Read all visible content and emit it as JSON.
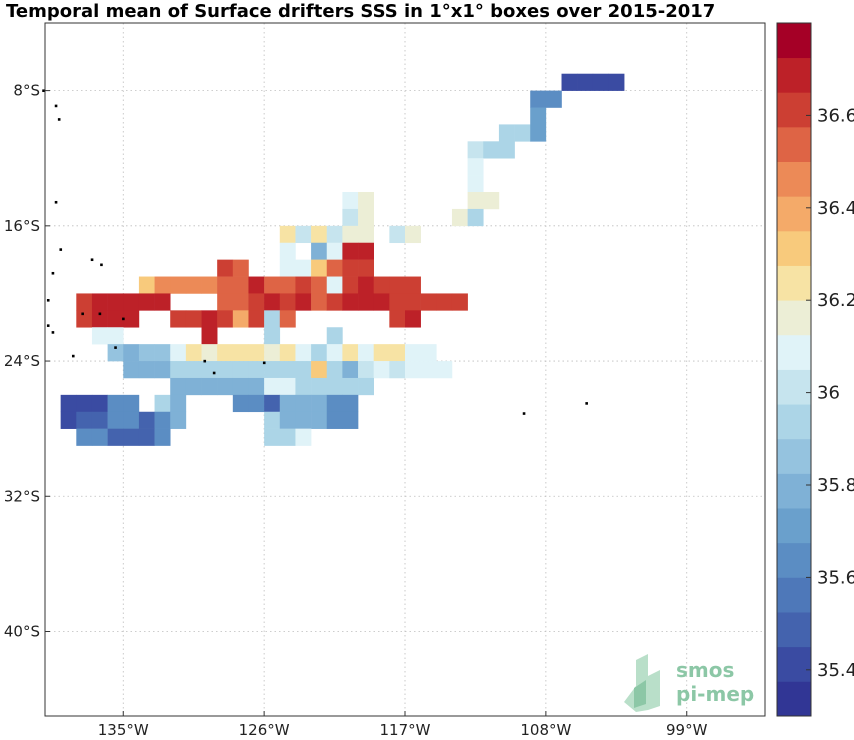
{
  "title": "Temporal mean of Surface drifters SSS in 1°x1° boxes over 2015-2017",
  "map": {
    "lon_range": [
      -140,
      -94
    ],
    "lat_range": [
      -45,
      -4
    ],
    "lon_ticks": [
      {
        "value": -135,
        "label": "135°W"
      },
      {
        "value": -126,
        "label": "126°W"
      },
      {
        "value": -117,
        "label": "117°W"
      },
      {
        "value": -108,
        "label": "108°W"
      },
      {
        "value": -99,
        "label": "99°W"
      }
    ],
    "lat_ticks": [
      {
        "value": -8,
        "label": "8°S"
      },
      {
        "value": -16,
        "label": "16°S"
      },
      {
        "value": -24,
        "label": "24°S"
      },
      {
        "value": -32,
        "label": "32°S"
      },
      {
        "value": -40,
        "label": "40°S"
      }
    ],
    "grid": true,
    "gridline_style": "dotted"
  },
  "colorbar": {
    "min": 35.3,
    "max": 36.8,
    "levels": 20,
    "ticks": [
      "35.4",
      "35.6",
      "35.8",
      "36",
      "36.2",
      "36.4",
      "36.6"
    ],
    "tick_values": [
      35.4,
      35.6,
      35.8,
      36.0,
      36.2,
      36.4,
      36.6
    ],
    "colors": [
      "#313695",
      "#3a4ba2",
      "#4463ae",
      "#4e78b9",
      "#5b8dc3",
      "#6aa0cc",
      "#7fb1d6",
      "#95c3df",
      "#acd5e7",
      "#c6e4ee",
      "#e0f3f8",
      "#eceed6",
      "#f7e3a4",
      "#f8ca7c",
      "#f4aa69",
      "#ec8a57",
      "#de6445",
      "#cc3f33",
      "#bd2128",
      "#a50026"
    ]
  },
  "logo": {
    "line1": "smos",
    "line2": "pi-mep"
  },
  "chart_data": {
    "type": "heatmap",
    "title": "Temporal mean of Surface drifters SSS in 1°x1° boxes over 2015-2017",
    "xlabel": "",
    "ylabel": "",
    "xlim": [
      -140,
      -94
    ],
    "ylim": [
      -45,
      -4
    ],
    "cell_size_deg": 1,
    "cells": [
      [
        -106.5,
        -7.5,
        35.4
      ],
      [
        -105.5,
        -7.5,
        35.4
      ],
      [
        -104.5,
        -7.5,
        35.4
      ],
      [
        -103.5,
        -7.5,
        35.4
      ],
      [
        -108.5,
        -8.5,
        35.6
      ],
      [
        -107.5,
        -8.5,
        35.6
      ],
      [
        -108.5,
        -9.5,
        35.7
      ],
      [
        -110.5,
        -10.5,
        35.9
      ],
      [
        -109.5,
        -10.5,
        35.9
      ],
      [
        -108.5,
        -10.5,
        35.7
      ],
      [
        -112.5,
        -11.5,
        36.0
      ],
      [
        -111.5,
        -11.5,
        35.9
      ],
      [
        -110.5,
        -11.5,
        35.9
      ],
      [
        -112.5,
        -12.5,
        36.1
      ],
      [
        -112.5,
        -13.5,
        36.1
      ],
      [
        -120.5,
        -14.5,
        36.1
      ],
      [
        -119.5,
        -14.5,
        36.15
      ],
      [
        -112.5,
        -14.5,
        36.15
      ],
      [
        -111.5,
        -14.5,
        36.15
      ],
      [
        -120.5,
        -15.5,
        36.0
      ],
      [
        -119.5,
        -15.5,
        36.15
      ],
      [
        -113.5,
        -15.5,
        36.15
      ],
      [
        -112.5,
        -15.5,
        35.9
      ],
      [
        -124.5,
        -16.5,
        36.2
      ],
      [
        -123.5,
        -16.5,
        36.0
      ],
      [
        -122.5,
        -16.5,
        36.2
      ],
      [
        -121.5,
        -16.5,
        36.0
      ],
      [
        -120.5,
        -16.5,
        36.15
      ],
      [
        -119.5,
        -16.5,
        36.15
      ],
      [
        -117.5,
        -16.5,
        36.0
      ],
      [
        -116.5,
        -16.5,
        36.15
      ],
      [
        -124.5,
        -17.5,
        36.05
      ],
      [
        -122.5,
        -17.5,
        35.8
      ],
      [
        -121.5,
        -17.5,
        36.05
      ],
      [
        -120.5,
        -17.5,
        36.7
      ],
      [
        -119.5,
        -17.5,
        36.7
      ],
      [
        -128.5,
        -18.5,
        36.6
      ],
      [
        -127.5,
        -18.5,
        36.5
      ],
      [
        -124.5,
        -18.5,
        36.05
      ],
      [
        -123.5,
        -18.5,
        36.1
      ],
      [
        -122.5,
        -18.5,
        36.3
      ],
      [
        -121.5,
        -18.5,
        36.5
      ],
      [
        -120.5,
        -18.5,
        36.6
      ],
      [
        -119.5,
        -18.5,
        36.6
      ],
      [
        -133.5,
        -19.5,
        36.3
      ],
      [
        -132.5,
        -19.5,
        36.45
      ],
      [
        -131.5,
        -19.5,
        36.45
      ],
      [
        -130.5,
        -19.5,
        36.45
      ],
      [
        -129.5,
        -19.5,
        36.45
      ],
      [
        -128.5,
        -19.5,
        36.55
      ],
      [
        -127.5,
        -19.5,
        36.55
      ],
      [
        -126.5,
        -19.5,
        36.65
      ],
      [
        -125.5,
        -19.5,
        36.55
      ],
      [
        -124.5,
        -19.5,
        36.55
      ],
      [
        -123.5,
        -19.5,
        36.6
      ],
      [
        -122.5,
        -19.5,
        36.55
      ],
      [
        -121.5,
        -19.5,
        36.1
      ],
      [
        -120.5,
        -19.5,
        36.6
      ],
      [
        -119.5,
        -19.5,
        36.7
      ],
      [
        -118.5,
        -19.5,
        36.6
      ],
      [
        -117.5,
        -19.5,
        36.6
      ],
      [
        -116.5,
        -19.5,
        36.6
      ],
      [
        -137.5,
        -20.5,
        36.6
      ],
      [
        -136.5,
        -20.5,
        36.7
      ],
      [
        -135.5,
        -20.5,
        36.7
      ],
      [
        -134.5,
        -20.5,
        36.7
      ],
      [
        -133.5,
        -20.5,
        36.7
      ],
      [
        -132.5,
        -20.5,
        36.7
      ],
      [
        -128.5,
        -20.5,
        36.55
      ],
      [
        -127.5,
        -20.5,
        36.55
      ],
      [
        -126.5,
        -20.5,
        36.6
      ],
      [
        -125.5,
        -20.5,
        36.65
      ],
      [
        -124.5,
        -20.5,
        36.6
      ],
      [
        -123.5,
        -20.5,
        36.65
      ],
      [
        -122.5,
        -20.5,
        36.5
      ],
      [
        -121.5,
        -20.5,
        36.6
      ],
      [
        -120.5,
        -20.5,
        36.7
      ],
      [
        -119.5,
        -20.5,
        36.7
      ],
      [
        -118.5,
        -20.5,
        36.7
      ],
      [
        -117.5,
        -20.5,
        36.6
      ],
      [
        -116.5,
        -20.5,
        36.6
      ],
      [
        -115.5,
        -20.5,
        36.6
      ],
      [
        -114.5,
        -20.5,
        36.6
      ],
      [
        -113.5,
        -20.5,
        36.6
      ],
      [
        -137.5,
        -21.5,
        36.6
      ],
      [
        -136.5,
        -21.5,
        36.7
      ],
      [
        -135.5,
        -21.5,
        36.65
      ],
      [
        -134.5,
        -21.5,
        36.65
      ],
      [
        -131.5,
        -21.5,
        36.6
      ],
      [
        -130.5,
        -21.5,
        36.6
      ],
      [
        -129.5,
        -21.5,
        36.7
      ],
      [
        -128.5,
        -21.5,
        36.6
      ],
      [
        -127.5,
        -21.5,
        36.4
      ],
      [
        -126.5,
        -21.5,
        36.6
      ],
      [
        -125.5,
        -21.5,
        35.9
      ],
      [
        -124.5,
        -21.5,
        36.5
      ],
      [
        -117.5,
        -21.5,
        36.6
      ],
      [
        -116.5,
        -21.5,
        36.7
      ],
      [
        -136.5,
        -22.5,
        36.1
      ],
      [
        -135.5,
        -22.5,
        36.05
      ],
      [
        -129.5,
        -22.5,
        36.7
      ],
      [
        -125.5,
        -22.5,
        35.95
      ],
      [
        -121.5,
        -22.5,
        35.9
      ],
      [
        -135.5,
        -23.5,
        35.85
      ],
      [
        -134.5,
        -23.5,
        35.8
      ],
      [
        -133.5,
        -23.5,
        35.85
      ],
      [
        -132.5,
        -23.5,
        35.85
      ],
      [
        -131.5,
        -23.5,
        36.1
      ],
      [
        -130.5,
        -23.5,
        36.2
      ],
      [
        -129.5,
        -23.5,
        36.15
      ],
      [
        -128.5,
        -23.5,
        36.25
      ],
      [
        -127.5,
        -23.5,
        36.25
      ],
      [
        -126.5,
        -23.5,
        36.25
      ],
      [
        -125.5,
        -23.5,
        36.15
      ],
      [
        -124.5,
        -23.5,
        36.25
      ],
      [
        -123.5,
        -23.5,
        36.05
      ],
      [
        -122.5,
        -23.5,
        35.95
      ],
      [
        -121.5,
        -23.5,
        36.05
      ],
      [
        -120.5,
        -23.5,
        36.2
      ],
      [
        -119.5,
        -23.5,
        36.1
      ],
      [
        -118.5,
        -23.5,
        36.25
      ],
      [
        -117.5,
        -23.5,
        36.25
      ],
      [
        -116.5,
        -23.5,
        36.1
      ],
      [
        -115.5,
        -23.5,
        36.1
      ],
      [
        -134.5,
        -24.5,
        35.8
      ],
      [
        -133.5,
        -24.5,
        35.8
      ],
      [
        -132.5,
        -24.5,
        35.8
      ],
      [
        -131.5,
        -24.5,
        35.95
      ],
      [
        -130.5,
        -24.5,
        35.9
      ],
      [
        -129.5,
        -24.5,
        35.95
      ],
      [
        -128.5,
        -24.5,
        35.95
      ],
      [
        -127.5,
        -24.5,
        35.95
      ],
      [
        -126.5,
        -24.5,
        35.95
      ],
      [
        -125.5,
        -24.5,
        35.95
      ],
      [
        -124.5,
        -24.5,
        35.95
      ],
      [
        -123.5,
        -24.5,
        35.95
      ],
      [
        -122.5,
        -24.5,
        36.3
      ],
      [
        -121.5,
        -24.5,
        35.95
      ],
      [
        -120.5,
        -24.5,
        35.8
      ],
      [
        -119.5,
        -24.5,
        36.0
      ],
      [
        -118.5,
        -24.5,
        36.05
      ],
      [
        -117.5,
        -24.5,
        36.0
      ],
      [
        -116.5,
        -24.5,
        36.05
      ],
      [
        -115.5,
        -24.5,
        36.1
      ],
      [
        -114.5,
        -24.5,
        36.1
      ],
      [
        -131.5,
        -25.5,
        35.75
      ],
      [
        -130.5,
        -25.5,
        35.75
      ],
      [
        -129.5,
        -25.5,
        35.75
      ],
      [
        -128.5,
        -25.5,
        35.75
      ],
      [
        -127.5,
        -25.5,
        35.75
      ],
      [
        -126.5,
        -25.5,
        35.75
      ],
      [
        -125.5,
        -25.5,
        36.05
      ],
      [
        -124.5,
        -25.5,
        36.05
      ],
      [
        -123.5,
        -25.5,
        35.9
      ],
      [
        -122.5,
        -25.5,
        35.95
      ],
      [
        -121.5,
        -25.5,
        35.9
      ],
      [
        -120.5,
        -25.5,
        35.95
      ],
      [
        -119.5,
        -25.5,
        35.95
      ],
      [
        -138.5,
        -26.5,
        35.4
      ],
      [
        -137.5,
        -26.5,
        35.4
      ],
      [
        -136.5,
        -26.5,
        35.4
      ],
      [
        -135.5,
        -26.5,
        35.6
      ],
      [
        -134.5,
        -26.5,
        35.6
      ],
      [
        -132.5,
        -26.5,
        35.9
      ],
      [
        -131.5,
        -26.5,
        35.75
      ],
      [
        -127.5,
        -26.5,
        35.6
      ],
      [
        -126.5,
        -26.5,
        35.65
      ],
      [
        -125.5,
        -26.5,
        35.45
      ],
      [
        -124.5,
        -26.5,
        35.8
      ],
      [
        -123.5,
        -26.5,
        35.8
      ],
      [
        -122.5,
        -26.5,
        35.8
      ],
      [
        -121.5,
        -26.5,
        35.65
      ],
      [
        -120.5,
        -26.5,
        35.65
      ],
      [
        -138.5,
        -27.5,
        35.4
      ],
      [
        -137.5,
        -27.5,
        35.45
      ],
      [
        -136.5,
        -27.5,
        35.45
      ],
      [
        -135.5,
        -27.5,
        35.6
      ],
      [
        -134.5,
        -27.5,
        35.6
      ],
      [
        -133.5,
        -27.5,
        35.5
      ],
      [
        -132.5,
        -27.5,
        35.6
      ],
      [
        -131.5,
        -27.5,
        35.75
      ],
      [
        -125.5,
        -27.5,
        35.95
      ],
      [
        -124.5,
        -27.5,
        35.8
      ],
      [
        -123.5,
        -27.5,
        35.8
      ],
      [
        -122.5,
        -27.5,
        35.8
      ],
      [
        -121.5,
        -27.5,
        35.6
      ],
      [
        -120.5,
        -27.5,
        35.6
      ],
      [
        -137.5,
        -28.5,
        35.6
      ],
      [
        -136.5,
        -28.5,
        35.65
      ],
      [
        -135.5,
        -28.5,
        35.45
      ],
      [
        -134.5,
        -28.5,
        35.45
      ],
      [
        -133.5,
        -28.5,
        35.5
      ],
      [
        -132.5,
        -28.5,
        35.65
      ],
      [
        -125.5,
        -28.5,
        35.95
      ],
      [
        -124.5,
        -28.5,
        35.95
      ],
      [
        -123.5,
        -28.5,
        36.05
      ]
    ]
  }
}
